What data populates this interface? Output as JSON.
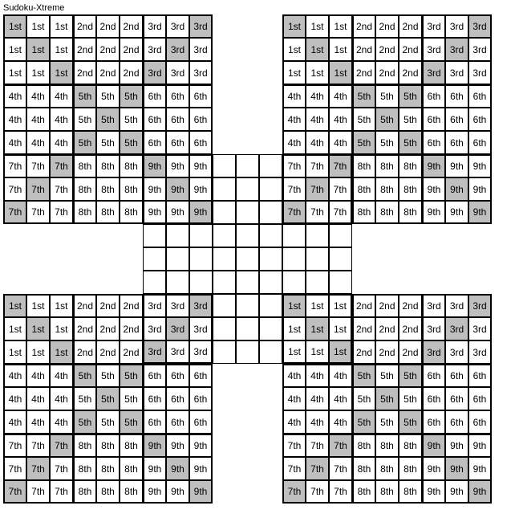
{
  "title": "Sudoku-Xtreme",
  "grid_size": 21,
  "cell_size": 29,
  "colors": {
    "background": "#ffffff",
    "shaded": "#bfbfbf",
    "border": "#000000",
    "text": "#000000"
  },
  "font_size": 12,
  "sub_grids": [
    {
      "row": 0,
      "col": 0
    },
    {
      "row": 0,
      "col": 12
    },
    {
      "row": 12,
      "col": 0
    },
    {
      "row": 12,
      "col": 12
    }
  ],
  "center_grid": {
    "row": 6,
    "col": 6
  },
  "block_labels": [
    "1st",
    "2nd",
    "3rd",
    "4th",
    "5th",
    "6th",
    "7th",
    "8th",
    "9th"
  ],
  "shaded_pattern_per_block": {
    "1": [
      [
        0,
        0
      ],
      [
        1,
        1
      ],
      [
        2,
        2
      ]
    ],
    "2": [],
    "3": [
      [
        0,
        2
      ],
      [
        1,
        1
      ],
      [
        2,
        0
      ]
    ],
    "4": [],
    "5": [
      [
        0,
        0
      ],
      [
        0,
        2
      ],
      [
        1,
        1
      ],
      [
        2,
        0
      ],
      [
        2,
        2
      ]
    ],
    "6": [],
    "7": [
      [
        0,
        2
      ],
      [
        1,
        1
      ],
      [
        2,
        0
      ]
    ],
    "8": [],
    "9": [
      [
        0,
        0
      ],
      [
        1,
        1
      ],
      [
        2,
        2
      ]
    ]
  }
}
